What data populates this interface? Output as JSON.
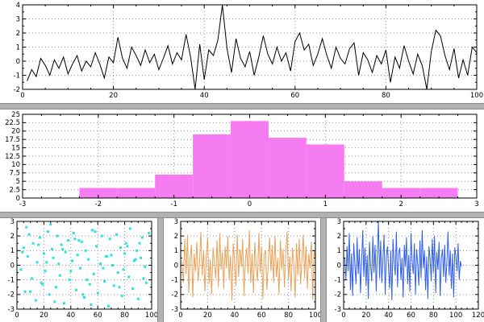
{
  "window": {
    "background": "#ffffff",
    "divider_color": "#b2b2b2",
    "grid_color": "#8f8f8f",
    "axis_color": "#000000"
  },
  "chart_data": [
    {
      "id": "noise-line",
      "type": "line",
      "title": "",
      "xlabel": "",
      "ylabel": "",
      "color": "#000000",
      "xlim": [
        0,
        100
      ],
      "ylim": [
        -2,
        4
      ],
      "xtick": 20,
      "ytick": 1,
      "xminor": 5,
      "yminor": 0.5,
      "grid": true,
      "x_start": 1,
      "x_step": 1,
      "values": [
        -1.4,
        -0.6,
        -1.1,
        0.2,
        -0.3,
        -1.0,
        0.1,
        -0.5,
        0.3,
        -0.9,
        -0.2,
        0.4,
        -0.7,
        0.0,
        -0.4,
        0.6,
        -0.2,
        -1.2,
        0.3,
        -0.1,
        1.7,
        0.2,
        -0.5,
        1.0,
        0.4,
        -0.3,
        0.8,
        -0.1,
        0.5,
        -0.6,
        0.2,
        1.1,
        -0.2,
        0.6,
        0.1,
        1.9,
        0.3,
        -2.0,
        1.2,
        -1.3,
        0.8,
        0.4,
        1.5,
        4.0,
        0.9,
        -0.8,
        1.6,
        0.2,
        -0.4,
        0.7,
        -1.0,
        0.3,
        1.8,
        0.5,
        -0.2,
        1.0,
        0.0,
        0.6,
        -0.7,
        1.4,
        2.0,
        0.8,
        1.2,
        -0.3,
        0.5,
        1.6,
        0.4,
        -0.5,
        1.0,
        0.2,
        -0.2,
        0.9,
        1.3,
        -1.0,
        0.6,
        0.1,
        -0.8,
        0.4,
        -0.2,
        0.8,
        -1.5,
        0.3,
        -0.5,
        1.1,
        0.0,
        -0.9,
        0.5,
        -0.3,
        -2.0,
        0.7,
        2.2,
        1.8,
        0.4,
        -0.6,
        0.9,
        -1.2,
        0.1,
        -1.0,
        1.0,
        0.6
      ]
    },
    {
      "id": "histogram",
      "type": "histogram",
      "title": "",
      "xlabel": "",
      "ylabel": "",
      "color": "#f57df1",
      "xlim": [
        -3,
        3
      ],
      "ylim": [
        0,
        25
      ],
      "xtick": 1,
      "ytick": 2.5,
      "xminor": 0.25,
      "yminor": null,
      "grid": true,
      "bin_start": -2.25,
      "bin_width": 0.5,
      "counts": [
        3,
        3,
        7,
        19,
        23,
        18,
        16,
        5,
        3,
        3
      ]
    },
    {
      "id": "scatter-cyan",
      "type": "scatter",
      "title": "",
      "xlabel": "",
      "ylabel": "",
      "color": "#2be2e2",
      "xlim": [
        0,
        100
      ],
      "ylim": [
        -3,
        3
      ],
      "xtick": 20,
      "ytick": 1,
      "xminor": 5,
      "yminor": 0.5,
      "grid": true,
      "x": [
        3,
        5,
        6,
        8,
        9,
        11,
        12,
        14,
        15,
        17,
        18,
        20,
        21,
        23,
        24,
        26,
        27,
        29,
        30,
        32,
        33,
        35,
        36,
        38,
        39,
        41,
        42,
        44,
        45,
        47,
        48,
        50,
        51,
        53,
        54,
        56,
        57,
        59,
        60,
        62,
        63,
        65,
        66,
        68,
        69,
        71,
        72,
        74,
        75,
        77,
        78,
        80,
        81,
        83,
        84,
        86,
        87,
        89,
        90,
        92,
        93,
        95,
        96,
        98,
        4,
        10,
        16,
        22,
        28,
        34,
        40,
        46,
        52,
        58,
        64,
        70,
        76,
        82,
        88,
        94,
        7,
        19,
        31,
        43,
        55,
        67,
        79,
        91,
        25,
        49
      ],
      "y": [
        -0.3,
        1.2,
        -1.8,
        0.6,
        2.1,
        -0.9,
        1.5,
        -2.4,
        0.2,
        1.9,
        -1.2,
        0.8,
        -0.4,
        2.3,
        -2.0,
        1.1,
        0.5,
        -1.5,
        2.0,
        -0.7,
        1.4,
        -2.6,
        0.9,
        1.7,
        -1.0,
        0.3,
        2.2,
        -1.7,
        0.7,
        -0.2,
        1.6,
        -2.2,
        1.0,
        0.4,
        -1.3,
        2.4,
        -0.6,
        1.3,
        -1.9,
        0.1,
        2.0,
        -1.1,
        0.6,
        -2.8,
        1.8,
        0.0,
        -1.4,
        2.1,
        -0.5,
        1.2,
        -2.1,
        0.8,
        1.5,
        -0.8,
        2.5,
        -1.6,
        0.3,
        1.0,
        -2.3,
        0.5,
        1.9,
        -0.1,
        -1.2,
        2.2,
        0.9,
        -1.8,
        1.4,
        0.2,
        -2.5,
        1.1,
        -0.4,
        1.7,
        -1.0,
        2.3,
        -0.2,
        0.7,
        -1.5,
        1.3,
        0.4,
        -0.9,
        2.6,
        -1.3,
        0.1,
        1.8,
        -2.7,
        0.6,
        -0.3,
        1.5,
        2.8,
        -2.0
      ]
    },
    {
      "id": "noise-orange",
      "type": "line",
      "title": "",
      "xlabel": "",
      "ylabel": "",
      "color": "#eba157",
      "xlim": [
        0,
        100
      ],
      "ylim": [
        -3,
        3
      ],
      "xtick": 20,
      "ytick": 1,
      "xminor": 5,
      "yminor": 0.5,
      "grid": true,
      "x_start": 1,
      "x_step": 1,
      "values": [
        0.3,
        -1.2,
        1.8,
        -0.6,
        2.1,
        -1.9,
        0.5,
        1.4,
        -2.2,
        0.8,
        -0.4,
        1.6,
        -1.1,
        0.2,
        2.3,
        -0.7,
        1.0,
        -1.8,
        0.6,
        1.9,
        -1.3,
        0.4,
        -2.0,
        1.2,
        0.1,
        -0.9,
        1.7,
        -1.5,
        2.2,
        -0.3,
        0.9,
        -1.6,
        1.3,
        -0.2,
        2.0,
        -1.0,
        0.7,
        -2.4,
        1.5,
        0.3,
        -1.4,
        2.1,
        -0.8,
        1.1,
        -0.1,
        1.8,
        -2.1,
        0.4,
        1.2,
        -0.6,
        2.4,
        -1.2,
        0.8,
        -1.9,
        1.6,
        0.0,
        -1.1,
        2.2,
        -0.5,
        1.3,
        -2.3,
        0.7,
        1.0,
        -1.7,
        0.2,
        1.9,
        -0.4,
        1.4,
        -1.2,
        2.0,
        -0.8,
        0.5,
        -2.0,
        1.7,
        -0.3,
        1.1,
        -1.5,
        0.9,
        2.3,
        -1.0,
        0.6,
        -1.8,
        1.2,
        0.0,
        -2.2,
        1.5,
        -0.7,
        1.8,
        -1.3,
        0.4,
        2.1,
        -0.9,
        1.3,
        -1.6,
        0.8,
        -0.2,
        1.6,
        -2.4,
        1.0,
        0.5
      ]
    },
    {
      "id": "noise-blue",
      "type": "line",
      "title": "",
      "xlabel": "",
      "ylabel": "",
      "color": "#3060e8",
      "xlim": [
        0,
        120
      ],
      "ylim": [
        -3,
        3
      ],
      "xtick": 20,
      "ytick": 1,
      "xminor": 5,
      "yminor": 0.5,
      "grid": true,
      "x_start": 1,
      "x_step": 1,
      "values": [
        0.5,
        -1.0,
        1.3,
        -0.4,
        2.2,
        -1.7,
        0.8,
        -2.1,
        1.5,
        0.1,
        -1.3,
        1.9,
        -0.6,
        1.1,
        -1.9,
        0.3,
        2.4,
        -0.8,
        1.2,
        -1.4,
        0.7,
        -2.3,
        1.6,
        0.0,
        -1.1,
        2.0,
        -0.5,
        1.4,
        -1.8,
        0.9,
        3.0,
        -0.9,
        1.7,
        -1.2,
        0.4,
        2.1,
        -2.0,
        0.6,
        1.3,
        -0.3,
        -1.6,
        1.0,
        -2.4,
        1.8,
        0.2,
        -0.7,
        2.3,
        -1.5,
        0.8,
        1.2,
        -1.0,
        0.5,
        -2.2,
        1.4,
        -0.1,
        1.9,
        -1.3,
        0.7,
        -1.8,
        2.2,
        0.3,
        -0.6,
        1.5,
        -2.0,
        1.1,
        0.0,
        -1.4,
        1.7,
        -0.9,
        2.4,
        -0.2,
        1.0,
        -1.7,
        0.6,
        -2.3,
        1.3,
        0.4,
        -1.1,
        1.8,
        -0.5,
        2.0,
        -1.9,
        0.9,
        -0.3,
        1.6,
        -2.1,
        0.5,
        1.1,
        -0.8,
        1.4,
        -1.2,
        0.2,
        2.3,
        -0.7,
        1.0,
        -1.6,
        0.8,
        -2.2,
        1.2,
        0.6,
        -0.4,
        1.5,
        -1.0,
        0.3,
        -0.1
      ]
    }
  ]
}
